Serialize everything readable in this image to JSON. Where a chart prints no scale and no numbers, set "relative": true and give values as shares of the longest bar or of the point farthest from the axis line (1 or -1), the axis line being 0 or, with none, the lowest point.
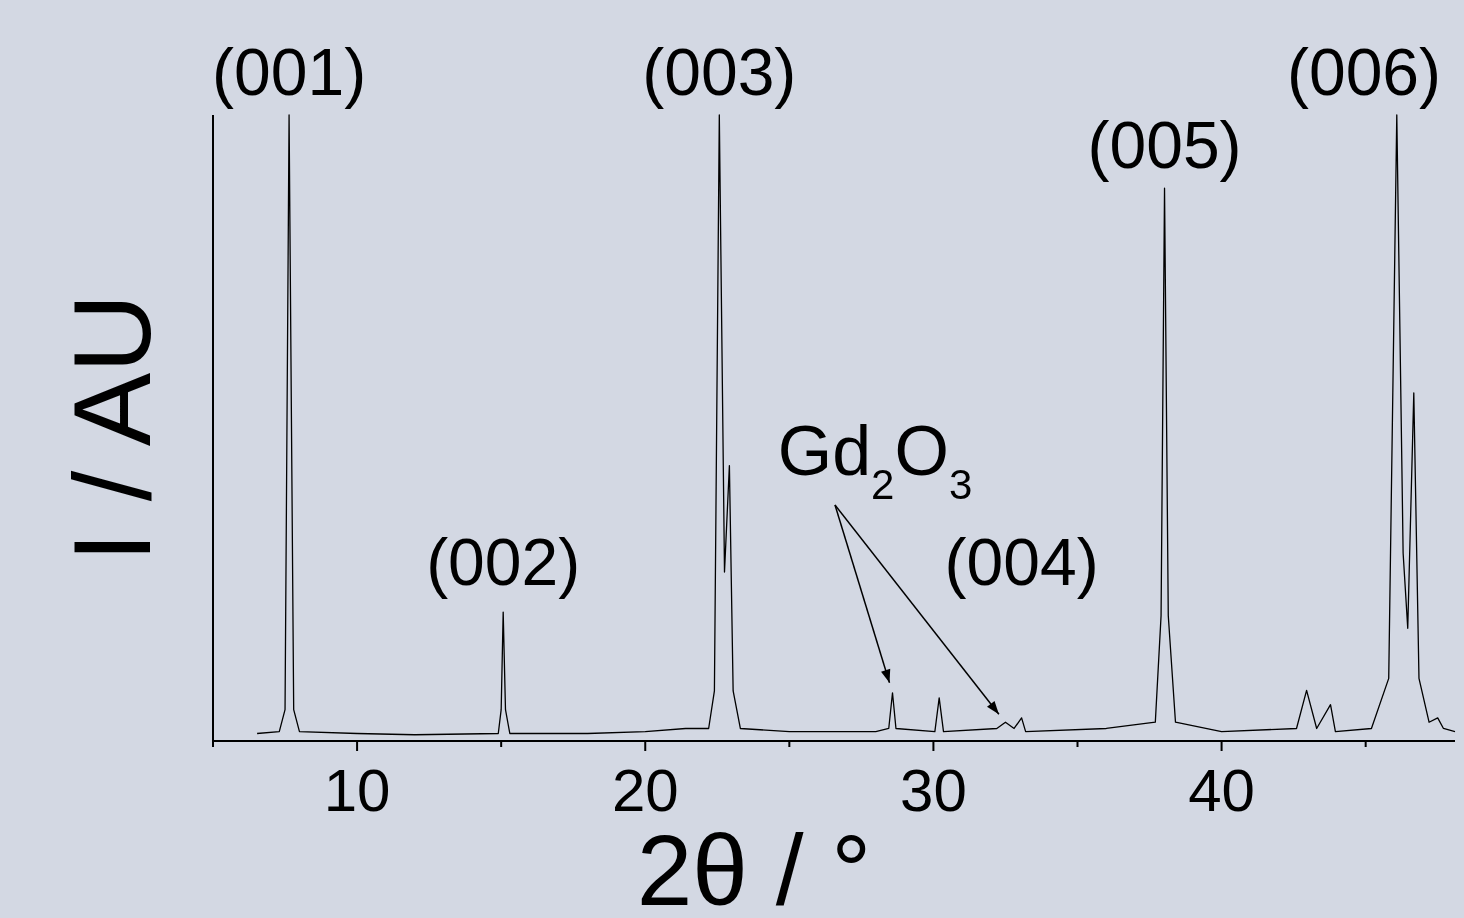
{
  "chart_data": {
    "type": "line",
    "relative": true,
    "xlabel": "2θ / °",
    "ylabel": "I / AU",
    "color": "#000000",
    "xlim": [
      5,
      48.1
    ],
    "xticks": [
      {
        "value": 5,
        "label": null
      },
      10,
      {
        "value": 15,
        "label": null
      },
      20,
      {
        "value": 25,
        "label": null
      },
      30,
      {
        "value": 35,
        "label": null
      },
      40,
      {
        "value": 45,
        "label": null
      }
    ],
    "x": [
      6.53,
      7.3,
      7.5,
      7.64,
      7.8,
      8.0,
      10,
      12,
      14.9,
      15.0,
      15.07,
      15.15,
      15.3,
      18,
      20,
      21.4,
      22.2,
      22.4,
      22.57,
      22.75,
      22.92,
      23.05,
      23.3,
      25,
      28,
      28.45,
      28.58,
      28.7,
      30.05,
      30.2,
      30.35,
      32.2,
      32.5,
      32.8,
      33.06,
      33.2,
      36,
      37.7,
      37.9,
      38.02,
      38.15,
      38.4,
      40,
      42.6,
      42.95,
      43.3,
      43.78,
      43.95,
      45.2,
      45.8,
      46.08,
      46.3,
      46.46,
      46.67,
      46.85,
      47.2,
      47.5,
      47.7,
      48.1
    ],
    "values": [
      0.012,
      0.015,
      0.05,
      1,
      0.05,
      0.015,
      0.012,
      0.01,
      0.012,
      0.05,
      0.206,
      0.05,
      0.012,
      0.012,
      0.015,
      0.02,
      0.02,
      0.08,
      1,
      0.27,
      0.44,
      0.08,
      0.02,
      0.015,
      0.015,
      0.02,
      0.077,
      0.02,
      0.015,
      0.069,
      0.015,
      0.02,
      0.03,
      0.02,
      0.037,
      0.015,
      0.02,
      0.03,
      0.2,
      0.883,
      0.2,
      0.03,
      0.015,
      0.02,
      0.081,
      0.02,
      0.058,
      0.015,
      0.02,
      0.1,
      1,
      0.3,
      0.18,
      0.556,
      0.1,
      0.03,
      0.037,
      0.02,
      0.015
    ],
    "annotations": [
      {
        "text": "(001)",
        "x": 7.64,
        "y": 1
      },
      {
        "text": "(002)",
        "x": 15.07,
        "y": 0.206
      },
      {
        "text": "(003)",
        "x": 22.57,
        "y": 1
      },
      {
        "text": "(004)",
        "x": 33.06,
        "y": 0.037
      },
      {
        "text": "(005)",
        "x": 38.02,
        "y": 0.883
      },
      {
        "text": "(006)",
        "x": 46.08,
        "y": 1
      },
      {
        "text": "Gd$_{2}$O$_{3}$",
        "x": 28.58,
        "y": 0.077
      }
    ]
  }
}
